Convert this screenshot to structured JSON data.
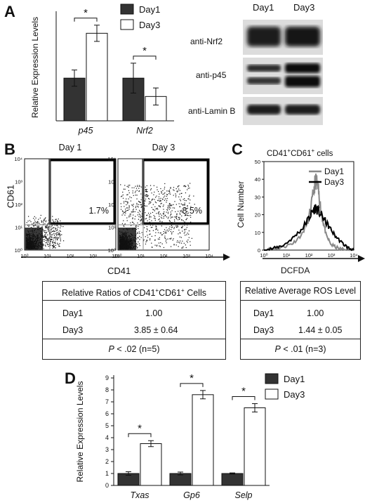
{
  "panels": {
    "A": "A",
    "B": "B",
    "C": "C",
    "D": "D"
  },
  "chart_data": [
    {
      "id": "A",
      "type": "bar",
      "ylabel": "Relative Expression Levels",
      "ylim": [
        0,
        2.5
      ],
      "categories": [
        "p45",
        "Nrf2"
      ],
      "series": [
        {
          "name": "Day1",
          "color": "#333333",
          "values": [
            1.0,
            1.0
          ],
          "errors": [
            0.19,
            0.35
          ]
        },
        {
          "name": "Day3",
          "color": "#ffffff",
          "values": [
            2.05,
            0.57
          ],
          "errors": [
            0.19,
            0.2
          ]
        }
      ],
      "annotations": [
        "*",
        "*"
      ],
      "legend": "top-right"
    },
    {
      "id": "D",
      "type": "bar",
      "ylabel": "Relative Expression Levels",
      "ylim": [
        0,
        9
      ],
      "yticks": [
        0,
        1,
        2,
        3,
        4,
        5,
        6,
        7,
        8,
        9
      ],
      "categories": [
        "Txas",
        "Gp6",
        "Selp"
      ],
      "series": [
        {
          "name": "Day1",
          "color": "#333333",
          "values": [
            1.0,
            1.0,
            1.0
          ],
          "errors": [
            0.15,
            0.12,
            0.05
          ]
        },
        {
          "name": "Day3",
          "color": "#ffffff",
          "values": [
            3.5,
            7.6,
            6.5
          ],
          "errors": [
            0.25,
            0.35,
            0.35
          ]
        }
      ],
      "annotations": [
        "*",
        "*",
        "*"
      ],
      "legend": "top-right"
    },
    {
      "id": "C",
      "type": "line",
      "title": "CD41⁺CD61⁺ cells",
      "ylabel": "Cell Number",
      "xlabel": "DCFDA",
      "xscale": "log",
      "xlim": [
        1,
        10000
      ],
      "ylim": [
        0,
        50
      ],
      "yticks": [
        0,
        10,
        20,
        30,
        40,
        50
      ],
      "xticks": [
        "10⁰",
        "10¹",
        "10²",
        "10³",
        "10⁴"
      ],
      "series": [
        {
          "name": "Day1",
          "color": "#888888",
          "x": [
            1,
            3,
            8,
            20,
            50,
            100,
            150,
            200,
            250,
            300,
            400,
            600,
            1000,
            2000,
            5000,
            10000
          ],
          "y": [
            0,
            1,
            2,
            4,
            9,
            18,
            30,
            40,
            36,
            28,
            18,
            8,
            3,
            1,
            0,
            0
          ]
        },
        {
          "name": "Day3",
          "color": "#000000",
          "x": [
            1,
            3,
            8,
            20,
            50,
            100,
            150,
            200,
            300,
            500,
            800,
            1500,
            3000,
            6000,
            10000
          ],
          "y": [
            0,
            1,
            3,
            7,
            12,
            18,
            22,
            24,
            21,
            17,
            13,
            8,
            4,
            1,
            0
          ]
        }
      ],
      "legend": "top-right"
    },
    {
      "id": "B",
      "type": "scatter",
      "ylabel": "CD61",
      "xlabel": "CD41",
      "xscale": "log",
      "yscale": "log",
      "xticks": [
        "10⁰",
        "10¹",
        "10²",
        "10³",
        "10⁴"
      ],
      "yticks": [
        "10⁰",
        "10¹",
        "10²",
        "10³",
        "10⁴"
      ],
      "plots": [
        {
          "title": "Day 1",
          "gate_percent": "1.7%"
        },
        {
          "title": "Day 3",
          "gate_percent": "8.5%"
        }
      ]
    }
  ],
  "blot": {
    "lanes": [
      "Day1",
      "Day3"
    ],
    "rows": [
      "anti-Nrf2",
      "anti-p45",
      "anti-Lamin B"
    ]
  },
  "tableB": {
    "title_pre": "Relative Ratios of CD41",
    "title_mid": "CD61",
    "title_post": " Cells",
    "sup": "+",
    "rows": [
      [
        "Day1",
        "1.00"
      ],
      [
        "Day3",
        "3.85 ± 0.64"
      ]
    ],
    "footer_p": "P",
    "footer_rest": " < .02 (n=5)"
  },
  "tableC": {
    "title": "Relative Average ROS Level",
    "rows": [
      [
        "Day1",
        "1.00"
      ],
      [
        "Day3",
        "1.44 ± 0.05"
      ]
    ],
    "footer_p": "P",
    "footer_rest": " < .01 (n=3)"
  }
}
